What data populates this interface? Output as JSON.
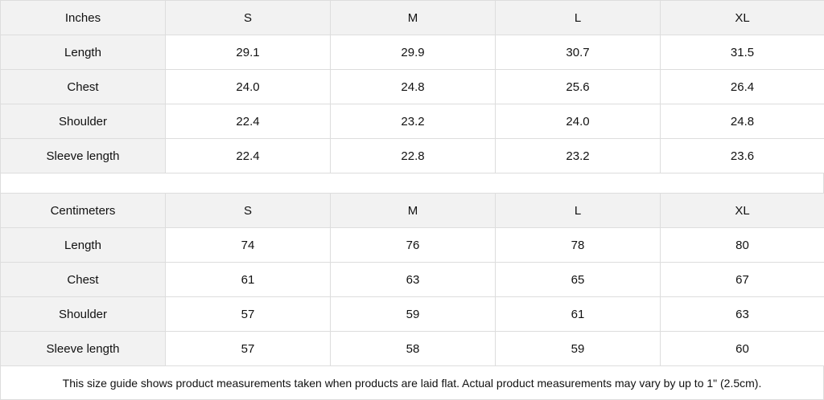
{
  "inches": {
    "header": [
      "Inches",
      "S",
      "M",
      "L",
      "XL"
    ],
    "rows": [
      [
        "Length",
        "29.1",
        "29.9",
        "30.7",
        "31.5"
      ],
      [
        "Chest",
        "24.0",
        "24.8",
        "25.6",
        "26.4"
      ],
      [
        "Shoulder",
        "22.4",
        "23.2",
        "24.0",
        "24.8"
      ],
      [
        "Sleeve length",
        "22.4",
        "22.8",
        "23.2",
        "23.6"
      ]
    ]
  },
  "centimeters": {
    "header": [
      "Centimeters",
      "S",
      "M",
      "L",
      "XL"
    ],
    "rows": [
      [
        "Length",
        "74",
        "76",
        "78",
        "80"
      ],
      [
        "Chest",
        "61",
        "63",
        "65",
        "67"
      ],
      [
        "Shoulder",
        "57",
        "59",
        "61",
        "63"
      ],
      [
        "Sleeve length",
        "57",
        "58",
        "59",
        "60"
      ]
    ]
  },
  "note": "This size guide shows product measurements taken when products are laid flat.  Actual product measurements may vary by up to 1\" (2.5cm).",
  "colors": {
    "header_bg": "#f2f2f2",
    "border": "#dddddd"
  }
}
